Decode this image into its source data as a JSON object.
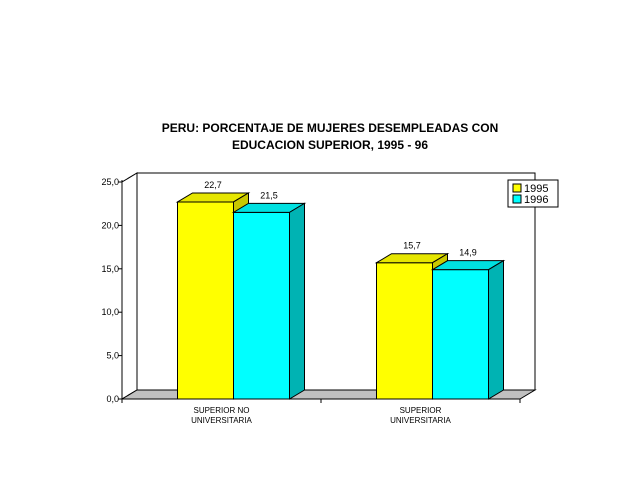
{
  "chart_data": {
    "type": "bar",
    "title_lines": [
      "PERU: PORCENTAJE DE MUJERES DESEMPLEADAS CON",
      "EDUCACION SUPERIOR, 1995 - 96"
    ],
    "categories": [
      [
        "SUPERIOR NO",
        "UNIVERSITARIA"
      ],
      [
        "SUPERIOR",
        "UNIVERSITARIA"
      ]
    ],
    "series": [
      {
        "name": "1995",
        "values": [
          22.7,
          15.7
        ],
        "labels": [
          "22,7",
          "15,7"
        ],
        "color": "#ffff00",
        "side": "#c8c800",
        "top": "#e6e600"
      },
      {
        "name": "1996",
        "values": [
          21.5,
          14.9
        ],
        "labels": [
          "21,5",
          "14,9"
        ],
        "color": "#00ffff",
        "side": "#00b3b3",
        "top": "#00e0e0"
      }
    ],
    "ylim": [
      0,
      25
    ],
    "yticks": [
      "0,0",
      "5,0",
      "10,0",
      "15,0",
      "20,0",
      "25,0"
    ],
    "grid": true,
    "legend": "top-right"
  }
}
